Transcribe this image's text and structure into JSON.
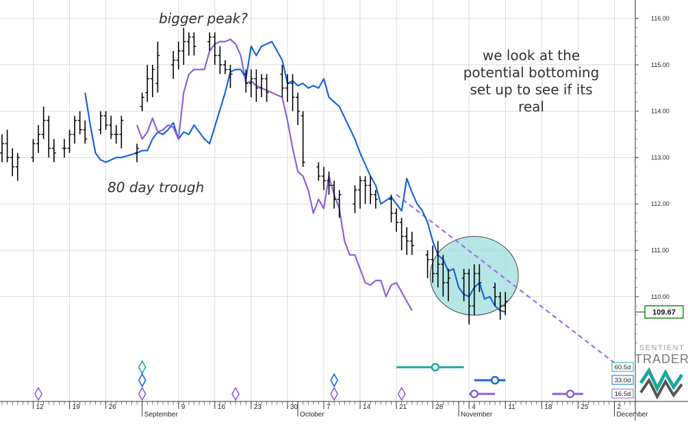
{
  "chart_data": {
    "type": "line",
    "title": "",
    "xlabel": "",
    "ylabel": "",
    "ylim": [
      108.25,
      116.3
    ],
    "y_ticks": [
      "116.00",
      "115.00",
      "114.00",
      "113.00",
      "112.00",
      "111.00",
      "110.00"
    ],
    "x_day_labels": [
      {
        "d": 6,
        "label": "12"
      },
      {
        "d": 13,
        "label": "19"
      },
      {
        "d": 20,
        "label": "26"
      },
      {
        "d": 34,
        "label": "9"
      },
      {
        "d": 41,
        "label": "16"
      },
      {
        "d": 48,
        "label": "23"
      },
      {
        "d": 55,
        "label": "30"
      },
      {
        "d": 62,
        "label": "7"
      },
      {
        "d": 69,
        "label": "14"
      },
      {
        "d": 76,
        "label": "21"
      },
      {
        "d": 83,
        "label": "28"
      },
      {
        "d": 90,
        "label": "4"
      },
      {
        "d": 97,
        "label": "11"
      },
      {
        "d": 104,
        "label": "18"
      },
      {
        "d": 111,
        "label": "25"
      },
      {
        "d": 118,
        "label": "2"
      }
    ],
    "x_month_labels": [
      {
        "d": 27,
        "label": "September"
      },
      {
        "d": 57,
        "label": "October"
      },
      {
        "d": 88,
        "label": "November"
      },
      {
        "d": 118,
        "label": "December"
      }
    ],
    "last_price": "109.67",
    "ohlc_bars": [
      [
        0,
        113.1,
        113.5,
        112.9,
        113.3
      ],
      [
        1,
        113.3,
        113.6,
        112.9,
        113.0
      ],
      [
        2,
        113.0,
        113.2,
        112.6,
        112.8
      ],
      [
        3,
        112.8,
        113.1,
        112.5,
        113.0
      ],
      [
        6,
        113.0,
        113.4,
        112.9,
        113.3
      ],
      [
        7,
        113.3,
        113.7,
        113.1,
        113.5
      ],
      [
        8,
        113.5,
        114.1,
        113.4,
        113.8
      ],
      [
        9,
        113.8,
        113.9,
        113.0,
        113.2
      ],
      [
        10,
        113.2,
        113.4,
        112.9,
        113.1
      ],
      [
        12,
        113.2,
        113.4,
        113.0,
        113.2
      ],
      [
        13,
        113.2,
        113.6,
        113.1,
        113.5
      ],
      [
        14,
        113.5,
        113.9,
        113.3,
        113.8
      ],
      [
        15,
        113.8,
        114.0,
        113.5,
        113.6
      ],
      [
        16,
        113.6,
        113.8,
        113.3,
        113.4
      ],
      [
        19,
        113.6,
        114.0,
        113.5,
        113.9
      ],
      [
        20,
        113.9,
        114.0,
        113.6,
        113.7
      ],
      [
        21,
        113.7,
        113.9,
        113.4,
        113.5
      ],
      [
        22,
        113.5,
        113.7,
        113.3,
        113.5
      ],
      [
        23,
        113.5,
        113.9,
        113.2,
        113.8
      ],
      [
        26,
        113.1,
        113.3,
        112.9,
        113.2
      ],
      [
        27,
        114.1,
        114.4,
        114.0,
        114.3
      ],
      [
        28,
        114.4,
        115.0,
        114.2,
        114.7
      ],
      [
        29,
        114.7,
        115.0,
        114.3,
        114.9
      ],
      [
        30,
        114.6,
        115.5,
        114.4,
        115.2
      ],
      [
        33,
        115.0,
        115.3,
        114.7,
        115.1
      ],
      [
        34,
        115.1,
        115.5,
        114.9,
        115.3
      ],
      [
        35,
        115.3,
        115.8,
        115.0,
        115.5
      ],
      [
        36,
        115.5,
        115.7,
        115.2,
        115.6
      ],
      [
        37,
        115.6,
        115.7,
        115.2,
        115.4
      ],
      [
        40,
        115.5,
        115.7,
        115.3,
        115.6
      ],
      [
        41,
        115.6,
        115.7,
        115.0,
        115.2
      ],
      [
        42,
        115.2,
        115.4,
        114.8,
        115.0
      ],
      [
        43,
        115.0,
        115.1,
        114.8,
        114.9
      ],
      [
        44,
        114.9,
        115.0,
        114.5,
        114.8
      ],
      [
        47,
        114.8,
        114.9,
        114.4,
        114.6
      ],
      [
        48,
        114.6,
        114.9,
        114.3,
        114.7
      ],
      [
        49,
        114.7,
        114.9,
        114.2,
        114.5
      ],
      [
        50,
        114.5,
        114.8,
        114.3,
        114.7
      ],
      [
        51,
        114.7,
        114.8,
        114.2,
        114.4
      ],
      [
        54,
        114.8,
        115.0,
        114.3,
        114.5
      ],
      [
        55,
        114.5,
        114.8,
        114.2,
        114.6
      ],
      [
        56,
        114.6,
        114.8,
        114.0,
        114.3
      ],
      [
        57,
        114.3,
        114.4,
        113.7,
        114.0
      ],
      [
        58,
        113.9,
        114.0,
        112.8,
        112.9
      ],
      [
        61,
        112.8,
        112.9,
        112.5,
        112.6
      ],
      [
        62,
        112.6,
        112.8,
        112.3,
        112.5
      ],
      [
        63,
        112.5,
        112.7,
        112.2,
        112.4
      ],
      [
        64,
        112.4,
        112.5,
        111.9,
        112.1
      ],
      [
        65,
        112.1,
        112.3,
        111.7,
        112.2
      ],
      [
        68,
        112.0,
        112.4,
        111.8,
        112.3
      ],
      [
        69,
        112.3,
        112.6,
        111.9,
        112.5
      ],
      [
        70,
        112.5,
        112.6,
        112.0,
        112.4
      ],
      [
        71,
        112.4,
        112.6,
        112.0,
        112.2
      ],
      [
        72,
        112.2,
        112.3,
        111.9,
        112.1
      ],
      [
        75,
        112.1,
        112.2,
        111.6,
        111.8
      ],
      [
        76,
        111.8,
        111.9,
        111.4,
        111.6
      ],
      [
        77,
        111.6,
        111.7,
        111.0,
        111.3
      ],
      [
        78,
        111.3,
        111.5,
        110.9,
        111.2
      ],
      [
        79,
        111.2,
        111.4,
        110.9,
        111.1
      ],
      [
        82,
        110.9,
        111.0,
        110.4,
        110.8
      ],
      [
        83,
        110.8,
        111.1,
        110.3,
        110.5
      ],
      [
        84,
        110.5,
        111.2,
        110.2,
        110.7
      ],
      [
        85,
        110.7,
        110.9,
        110.0,
        110.3
      ],
      [
        86,
        110.3,
        110.6,
        109.9,
        110.4
      ],
      [
        89,
        110.4,
        110.6,
        109.9,
        110.5
      ],
      [
        90,
        110.5,
        110.6,
        109.4,
        109.8
      ],
      [
        91,
        109.8,
        110.7,
        109.6,
        110.5
      ],
      [
        92,
        110.5,
        110.7,
        110.1,
        110.3
      ],
      [
        95,
        110.2,
        110.3,
        109.8,
        110.0
      ],
      [
        96,
        110.0,
        110.1,
        109.5,
        109.8
      ],
      [
        97,
        109.8,
        110.1,
        109.6,
        109.9
      ]
    ],
    "series": [
      {
        "color": "#1565d8",
        "points": [
          [
            16,
            114.4
          ],
          [
            17,
            113.7
          ],
          [
            18,
            113.1
          ],
          [
            19,
            112.95
          ],
          [
            20,
            112.9
          ],
          [
            21,
            112.95
          ],
          [
            22,
            113.0
          ],
          [
            23,
            113.0
          ],
          [
            26,
            113.1
          ],
          [
            27,
            113.15
          ],
          [
            28,
            113.15
          ],
          [
            29,
            113.4
          ],
          [
            30,
            113.55
          ],
          [
            31,
            113.5
          ],
          [
            32,
            113.6
          ],
          [
            33,
            113.75
          ],
          [
            34,
            113.4
          ],
          [
            35,
            113.55
          ],
          [
            36,
            113.5
          ],
          [
            37,
            113.7
          ],
          [
            38,
            113.55
          ],
          [
            39,
            113.4
          ],
          [
            40,
            113.3
          ],
          [
            43,
            114.4
          ],
          [
            44,
            114.85
          ],
          [
            45,
            114.9
          ],
          [
            46,
            114.9
          ],
          [
            47,
            114.7
          ],
          [
            48,
            115.4
          ],
          [
            49,
            115.2
          ],
          [
            50,
            115.4
          ],
          [
            51,
            115.45
          ],
          [
            52,
            115.5
          ],
          [
            54,
            115.1
          ],
          [
            55,
            114.6
          ],
          [
            56,
            114.65
          ],
          [
            57,
            114.55
          ],
          [
            58,
            114.6
          ],
          [
            59,
            114.5
          ],
          [
            60,
            114.55
          ],
          [
            61,
            114.5
          ],
          [
            62,
            114.7
          ],
          [
            63,
            114.3
          ],
          [
            64,
            114.2
          ],
          [
            65,
            114.1
          ],
          [
            68,
            113.4
          ],
          [
            69,
            113.1
          ],
          [
            70,
            112.85
          ],
          [
            71,
            112.6
          ],
          [
            72,
            112.4
          ],
          [
            73,
            112.0
          ],
          [
            75,
            112.15
          ],
          [
            76,
            112.0
          ],
          [
            77,
            111.85
          ],
          [
            78,
            112.55
          ],
          [
            79,
            112.25
          ],
          [
            80,
            112.0
          ],
          [
            81,
            111.85
          ],
          [
            82,
            111.6
          ],
          [
            83,
            111.2
          ],
          [
            84,
            110.9
          ],
          [
            85,
            110.8
          ],
          [
            86,
            110.55
          ],
          [
            87,
            110.6
          ],
          [
            88,
            110.2
          ],
          [
            89,
            110.05
          ],
          [
            90,
            110.0
          ],
          [
            91,
            110.2
          ],
          [
            92,
            110.3
          ],
          [
            93,
            109.95
          ],
          [
            94,
            110.0
          ],
          [
            95,
            109.8
          ],
          [
            96,
            109.7
          ],
          [
            97,
            109.67
          ]
        ]
      },
      {
        "color": "#8b5fd8",
        "points": [
          [
            26,
            113.7
          ],
          [
            27,
            113.4
          ],
          [
            28,
            113.55
          ],
          [
            29,
            113.85
          ],
          [
            30,
            113.55
          ],
          [
            31,
            113.6
          ],
          [
            32,
            113.7
          ],
          [
            33,
            113.65
          ],
          [
            34,
            113.4
          ],
          [
            35,
            114.4
          ],
          [
            36,
            114.8
          ],
          [
            37,
            114.9
          ],
          [
            38,
            114.9
          ],
          [
            39,
            114.9
          ],
          [
            40,
            115.3
          ],
          [
            41,
            115.45
          ],
          [
            42,
            115.5
          ],
          [
            43,
            115.5
          ],
          [
            44,
            115.55
          ],
          [
            45,
            115.45
          ],
          [
            46,
            115.2
          ],
          [
            47,
            114.6
          ],
          [
            48,
            114.65
          ],
          [
            49,
            114.55
          ],
          [
            50,
            114.5
          ],
          [
            51,
            114.45
          ],
          [
            52,
            114.4
          ],
          [
            53,
            114.35
          ],
          [
            54,
            114.3
          ],
          [
            55,
            113.8
          ],
          [
            56,
            113.2
          ],
          [
            57,
            112.7
          ],
          [
            58,
            112.6
          ],
          [
            59,
            112.3
          ],
          [
            60,
            111.8
          ],
          [
            61,
            112.1
          ],
          [
            62,
            111.9
          ],
          [
            63,
            112.6
          ],
          [
            64,
            112.2
          ],
          [
            65,
            111.9
          ],
          [
            66,
            111.2
          ],
          [
            67,
            110.9
          ],
          [
            68,
            110.9
          ],
          [
            69,
            110.6
          ],
          [
            70,
            110.3
          ],
          [
            71,
            110.25
          ],
          [
            72,
            110.35
          ],
          [
            73,
            110.35
          ],
          [
            74,
            110.0
          ],
          [
            75,
            110.25
          ],
          [
            76,
            110.3
          ],
          [
            77,
            110.1
          ],
          [
            78,
            109.9
          ],
          [
            79,
            109.7
          ]
        ]
      }
    ],
    "trendline": {
      "color": "#9b70e0",
      "from": [
        76,
        112.2
      ],
      "to": [
        120,
        108.4
      ]
    },
    "highlight": {
      "center": [
        91,
        110.45
      ],
      "rx_days": 8.5,
      "ry_price": 0.85,
      "fill": "#9fdede",
      "stroke": "#444"
    },
    "cycles": [
      {
        "label": "60.5d",
        "color": "#1aa7a0",
        "from": 76,
        "to": 89,
        "marker": 83.5,
        "row": 0
      },
      {
        "label": "33.0d",
        "color": "#1565d8",
        "from": 91,
        "to": 97,
        "marker": 95,
        "row": 1
      },
      {
        "label": "16.5d",
        "color": "#8b5fd8",
        "from": 90,
        "to": 95,
        "marker": 91,
        "row": 2
      },
      {
        "label": "",
        "color": "#8b5fd8",
        "from": 106,
        "to": 112,
        "marker": 109.5,
        "row": 2
      }
    ],
    "diamonds": [
      {
        "d": 7,
        "color": "#8b5fd8",
        "row": 2
      },
      {
        "d": 27,
        "color": "#1aa7a0",
        "row": 0
      },
      {
        "d": 27,
        "color": "#1565d8",
        "row": 1
      },
      {
        "d": 27,
        "color": "#8b5fd8",
        "row": 2
      },
      {
        "d": 45,
        "color": "#8b5fd8",
        "row": 2
      },
      {
        "d": 64,
        "color": "#1565d8",
        "row": 1
      },
      {
        "d": 64,
        "color": "#8b5fd8",
        "row": 2
      },
      {
        "d": 77,
        "color": "#8b5fd8",
        "row": 2
      }
    ],
    "annotations": [
      "bigger peak?",
      "80 day trough",
      "we look at the",
      "potential bottoming",
      "set up to see if its",
      "real"
    ]
  },
  "logo": {
    "line1": "SENTIENT",
    "line2": "TRADER"
  },
  "colors": {
    "grid": "#d9d9d9",
    "bars": "#000000",
    "price_box": "#1c8a1c"
  }
}
